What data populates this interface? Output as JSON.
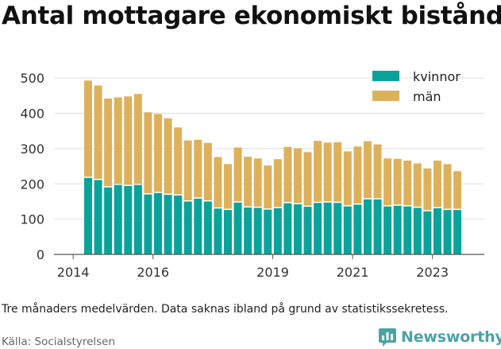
{
  "title": "Antal mottagare ekonomiskt bistånd",
  "note": "Tre månaders medelvärden. Data saknas ibland på grund av statistikssekretess.",
  "source": "Källa: Socialstyrelsen",
  "brand": {
    "name": "Newsworthy",
    "color": "#4ba3a6",
    "icon": "bar-chart-icon"
  },
  "chart_data": {
    "type": "bar",
    "stacked": true,
    "title": "Antal mottagare ekonomiskt bistånd",
    "xlabel": "",
    "ylabel": "",
    "ylim": [
      0,
      550
    ],
    "yticks": [
      0,
      100,
      200,
      300,
      400,
      500
    ],
    "xticks": [
      "2014",
      "2016",
      "2019",
      "2021",
      "2023"
    ],
    "grid": true,
    "legend_position": "top-right",
    "categories": [
      "2014-Q2",
      "2014-Q3",
      "2014-Q4",
      "2015-Q1",
      "2015-Q2",
      "2015-Q3",
      "2015-Q4",
      "2016-Q1",
      "2016-Q2",
      "2016-Q3",
      "2016-Q4",
      "2017-Q1",
      "2017-Q2",
      "2017-Q3",
      "2017-Q4",
      "2018-Q1",
      "2018-Q2",
      "2018-Q3",
      "2018-Q4",
      "2019-Q1",
      "2019-Q2",
      "2019-Q3",
      "2019-Q4",
      "2020-Q1",
      "2020-Q2",
      "2020-Q3",
      "2020-Q4",
      "2021-Q1",
      "2021-Q2",
      "2021-Q3",
      "2021-Q4",
      "2022-Q1",
      "2022-Q2",
      "2022-Q3",
      "2022-Q4",
      "2023-Q1",
      "2023-Q2",
      "2023-Q3"
    ],
    "series": [
      {
        "name": "kvinnor",
        "color": "#0aa39a",
        "values": [
          217,
          211,
          190,
          197,
          194,
          197,
          170,
          174,
          169,
          167,
          150,
          158,
          150,
          130,
          126,
          147,
          133,
          132,
          127,
          131,
          145,
          142,
          135,
          146,
          147,
          146,
          136,
          141,
          156,
          156,
          136,
          138,
          136,
          132,
          122,
          131,
          126,
          126
        ]
      },
      {
        "name": "män",
        "color": "#ddb15b",
        "values": [
          276,
          268,
          252,
          248,
          254,
          258,
          233,
          224,
          217,
          193,
          173,
          167,
          166,
          146,
          130,
          156,
          144,
          140,
          125,
          139,
          160,
          159,
          155,
          176,
          170,
          172,
          156,
          165,
          165,
          156,
          136,
          133,
          130,
          126,
          122,
          135,
          130,
          110
        ]
      }
    ]
  }
}
